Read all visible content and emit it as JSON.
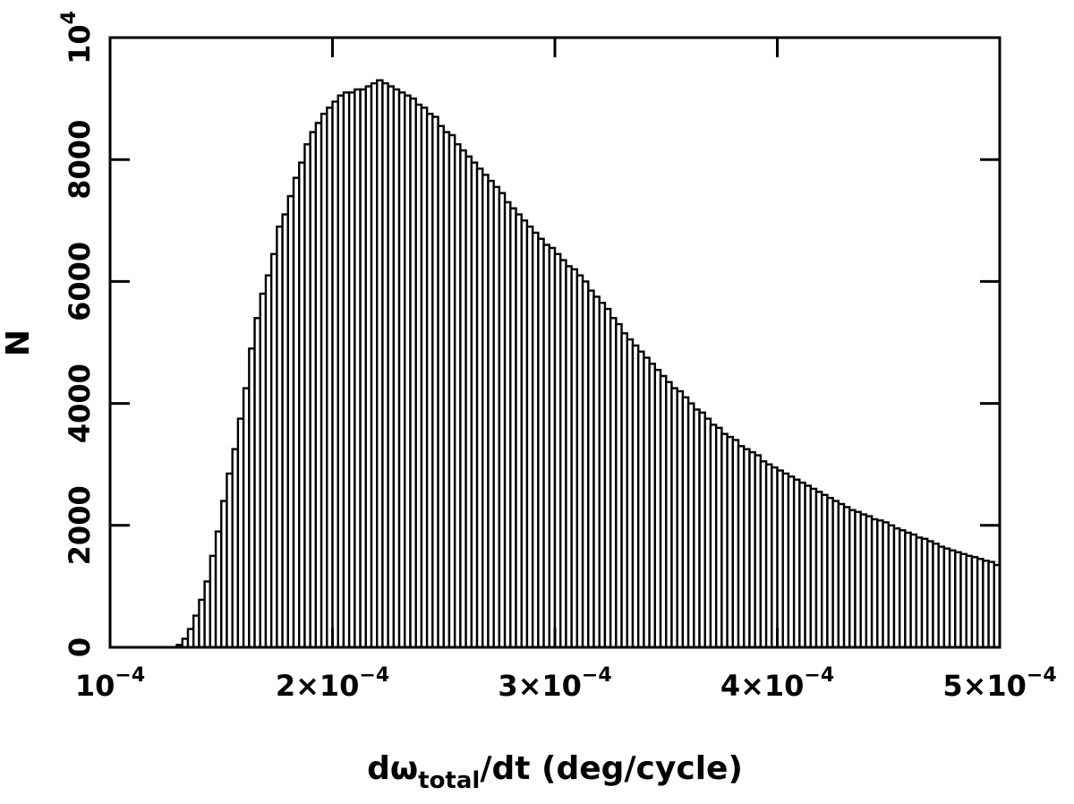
{
  "chart_data": {
    "type": "histogram",
    "xlabel": [
      "dω",
      "total",
      "/dt (deg/cycle)"
    ],
    "ylabel": "N",
    "color": "#ffffff",
    "edgecolor": "#000000",
    "xlim": [
      0.0001,
      0.0005
    ],
    "ylim": [
      0,
      10000
    ],
    "xticks": [
      {
        "value": 0.0001,
        "label": [
          "10",
          "−4"
        ]
      },
      {
        "value": 0.0002,
        "label": [
          "2×10",
          "−4"
        ]
      },
      {
        "value": 0.0003,
        "label": [
          "3×10",
          "−4"
        ]
      },
      {
        "value": 0.0004,
        "label": [
          "4×10",
          "−4"
        ]
      },
      {
        "value": 0.0005,
        "label": [
          "5×10",
          "−4"
        ]
      }
    ],
    "yticks": [
      0,
      2000,
      4000,
      6000,
      8000,
      {
        "value": 10000,
        "label": [
          "10",
          "4"
        ]
      }
    ],
    "bins": [
      0.0001,
      0.0001025,
      0.000105,
      0.0001075,
      0.00011,
      0.0001125,
      0.000115,
      0.0001175,
      0.00012,
      0.0001225,
      0.000125,
      0.0001275,
      0.00013,
      0.0001325,
      0.000135,
      0.0001375,
      0.00014,
      0.0001425,
      0.000145,
      0.0001475,
      0.00015,
      0.0001525,
      0.000155,
      0.0001575,
      0.00016,
      0.0001625,
      0.000165,
      0.0001675,
      0.00017,
      0.0001725,
      0.000175,
      0.0001775,
      0.00018,
      0.0001825,
      0.000185,
      0.0001875,
      0.00019,
      0.0001925,
      0.000195,
      0.0001975,
      0.0002,
      0.0002025,
      0.000205,
      0.0002075,
      0.00021,
      0.0002125,
      0.000215,
      0.0002175,
      0.00022,
      0.0002225,
      0.000225,
      0.0002275,
      0.00023,
      0.0002325,
      0.000235,
      0.0002375,
      0.00024,
      0.0002425,
      0.000245,
      0.0002475,
      0.00025,
      0.0002525,
      0.000255,
      0.0002575,
      0.00026,
      0.0002625,
      0.000265,
      0.0002675,
      0.00027,
      0.0002725,
      0.000275,
      0.0002775,
      0.00028,
      0.0002825,
      0.000285,
      0.0002875,
      0.00029,
      0.0002925,
      0.000295,
      0.0002975,
      0.0003,
      0.0003025,
      0.000305,
      0.0003075,
      0.00031,
      0.0003125,
      0.000315,
      0.0003175,
      0.00032,
      0.0003225,
      0.000325,
      0.0003275,
      0.00033,
      0.0003325,
      0.000335,
      0.0003375,
      0.00034,
      0.0003425,
      0.000345,
      0.0003475,
      0.00035,
      0.0003525,
      0.000355,
      0.0003575,
      0.00036,
      0.0003625,
      0.000365,
      0.0003675,
      0.00037,
      0.0003725,
      0.000375,
      0.0003775,
      0.00038,
      0.0003825,
      0.000385,
      0.0003875,
      0.00039,
      0.0003925,
      0.000395,
      0.0003975,
      0.0004,
      0.0004025,
      0.000405,
      0.0004075,
      0.00041,
      0.0004125,
      0.000415,
      0.0004175,
      0.00042,
      0.0004225,
      0.000425,
      0.0004275,
      0.00043,
      0.0004325,
      0.000435,
      0.0004375,
      0.00044,
      0.0004425,
      0.000445,
      0.0004475,
      0.00045,
      0.0004525,
      0.000455,
      0.0004575,
      0.00046,
      0.0004625,
      0.000465,
      0.0004675,
      0.00047,
      0.0004725,
      0.000475,
      0.0004775,
      0.00048,
      0.0004825,
      0.000485,
      0.0004875,
      0.00049,
      0.0004925,
      0.000495,
      0.0004975,
      0.0005
    ],
    "values": [
      0,
      0,
      0,
      0,
      0,
      0,
      0,
      0,
      0,
      0,
      0,
      0,
      40,
      140,
      300,
      520,
      780,
      1080,
      1500,
      1900,
      2400,
      2850,
      3250,
      3750,
      4250,
      4900,
      5400,
      5800,
      6100,
      6450,
      6900,
      7100,
      7400,
      7700,
      7950,
      8250,
      8450,
      8600,
      8750,
      8850,
      8950,
      9050,
      9100,
      9100,
      9150,
      9150,
      9200,
      9250,
      9300,
      9250,
      9200,
      9150,
      9100,
      9050,
      9000,
      8900,
      8850,
      8750,
      8700,
      8550,
      8450,
      8400,
      8250,
      8150,
      8050,
      7950,
      7850,
      7750,
      7650,
      7550,
      7450,
      7300,
      7200,
      7100,
      7000,
      6900,
      6800,
      6700,
      6600,
      6550,
      6450,
      6350,
      6250,
      6200,
      6100,
      6000,
      5850,
      5750,
      5650,
      5550,
      5400,
      5300,
      5150,
      5050,
      4950,
      4850,
      4750,
      4650,
      4550,
      4450,
      4350,
      4250,
      4200,
      4100,
      4000,
      3900,
      3850,
      3750,
      3650,
      3600,
      3500,
      3450,
      3400,
      3300,
      3250,
      3200,
      3150,
      3050,
      3000,
      2950,
      2900,
      2850,
      2800,
      2750,
      2700,
      2650,
      2600,
      2550,
      2500,
      2450,
      2400,
      2350,
      2300,
      2250,
      2220,
      2180,
      2150,
      2100,
      2080,
      2050,
      2000,
      1950,
      1920,
      1880,
      1850,
      1800,
      1780,
      1740,
      1700,
      1650,
      1620,
      1590,
      1560,
      1530,
      1500,
      1480,
      1450,
      1420,
      1400,
      1350
    ]
  }
}
